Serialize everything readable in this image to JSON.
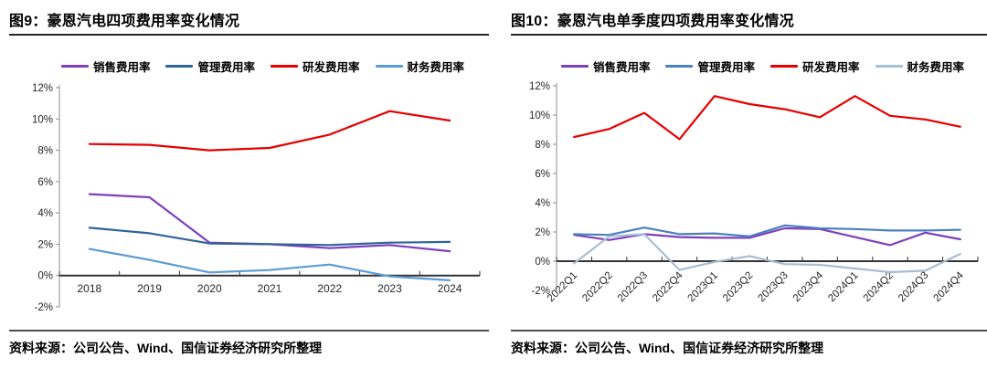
{
  "figures": [
    {
      "title": "图9：豪恩汽电四项费用率变化情况",
      "source": "资料来源：公司公告、Wind、国信证券经济研究所整理"
    },
    {
      "title": "图10：豪恩汽电单季度四项费用率变化情况",
      "source": "资料来源：公司公告、Wind、国信证券经济研究所整理"
    }
  ],
  "chart_data": [
    {
      "type": "line",
      "title": "图9：豪恩汽电四项费用率变化情况",
      "categories": [
        "2018",
        "2019",
        "2020",
        "2021",
        "2022",
        "2023",
        "2024"
      ],
      "series": [
        {
          "name": "销售费用率",
          "color": "#7E3FBE",
          "values": [
            5.2,
            5.0,
            2.1,
            2.0,
            1.75,
            1.95,
            1.55
          ]
        },
        {
          "name": "管理费用率",
          "color": "#31639C",
          "values": [
            3.05,
            2.7,
            2.05,
            2.0,
            1.95,
            2.1,
            2.15
          ]
        },
        {
          "name": "研发费用率",
          "color": "#E60000",
          "values": [
            8.4,
            8.35,
            8.0,
            8.15,
            9.0,
            10.5,
            9.9
          ]
        },
        {
          "name": "财务费用率",
          "color": "#5B9BD5",
          "values": [
            1.7,
            1.0,
            0.2,
            0.35,
            0.7,
            -0.05,
            -0.3
          ]
        }
      ],
      "ylim": [
        -2,
        12
      ],
      "ytick_step": 2,
      "ytick_suffix": "%",
      "xlabel": "",
      "ylabel": "",
      "grid": false,
      "legend_position": "top",
      "x_label_rotation": 0
    },
    {
      "type": "line",
      "title": "图10：豪恩汽电单季度四项费用率变化情况",
      "categories": [
        "2022Q1",
        "2022Q2",
        "2022Q3",
        "2022Q4",
        "2023Q1",
        "2023Q2",
        "2023Q3",
        "2023Q4",
        "2024Q1",
        "2024Q2",
        "2024Q3",
        "2024Q4"
      ],
      "series": [
        {
          "name": "销售费用率",
          "color": "#7E3FBE",
          "values": [
            1.8,
            1.45,
            1.85,
            1.65,
            1.6,
            1.6,
            2.25,
            2.2,
            1.65,
            1.1,
            1.95,
            1.5
          ]
        },
        {
          "name": "管理费用率",
          "color": "#4A80C0",
          "values": [
            1.85,
            1.8,
            2.3,
            1.85,
            1.9,
            1.7,
            2.45,
            2.25,
            2.2,
            2.1,
            2.1,
            2.15
          ]
        },
        {
          "name": "研发费用率",
          "color": "#E60000",
          "values": [
            8.5,
            9.05,
            10.15,
            8.35,
            11.3,
            10.75,
            10.4,
            9.85,
            11.3,
            9.95,
            9.7,
            9.2
          ]
        },
        {
          "name": "财务费用率",
          "color": "#A9BDD3",
          "values": [
            -0.15,
            1.7,
            1.85,
            -0.6,
            -0.05,
            0.35,
            -0.2,
            -0.25,
            -0.5,
            -0.75,
            -0.65,
            0.5
          ]
        }
      ],
      "ylim": [
        -2,
        12
      ],
      "ytick_step": 2,
      "ytick_suffix": "%",
      "xlabel": "",
      "ylabel": "",
      "grid": false,
      "legend_position": "top",
      "x_label_rotation": 45
    }
  ],
  "style": {
    "axis_color": "#333333",
    "y_axis_color": "#8c8c8c",
    "tick_label_color": "#262626"
  }
}
